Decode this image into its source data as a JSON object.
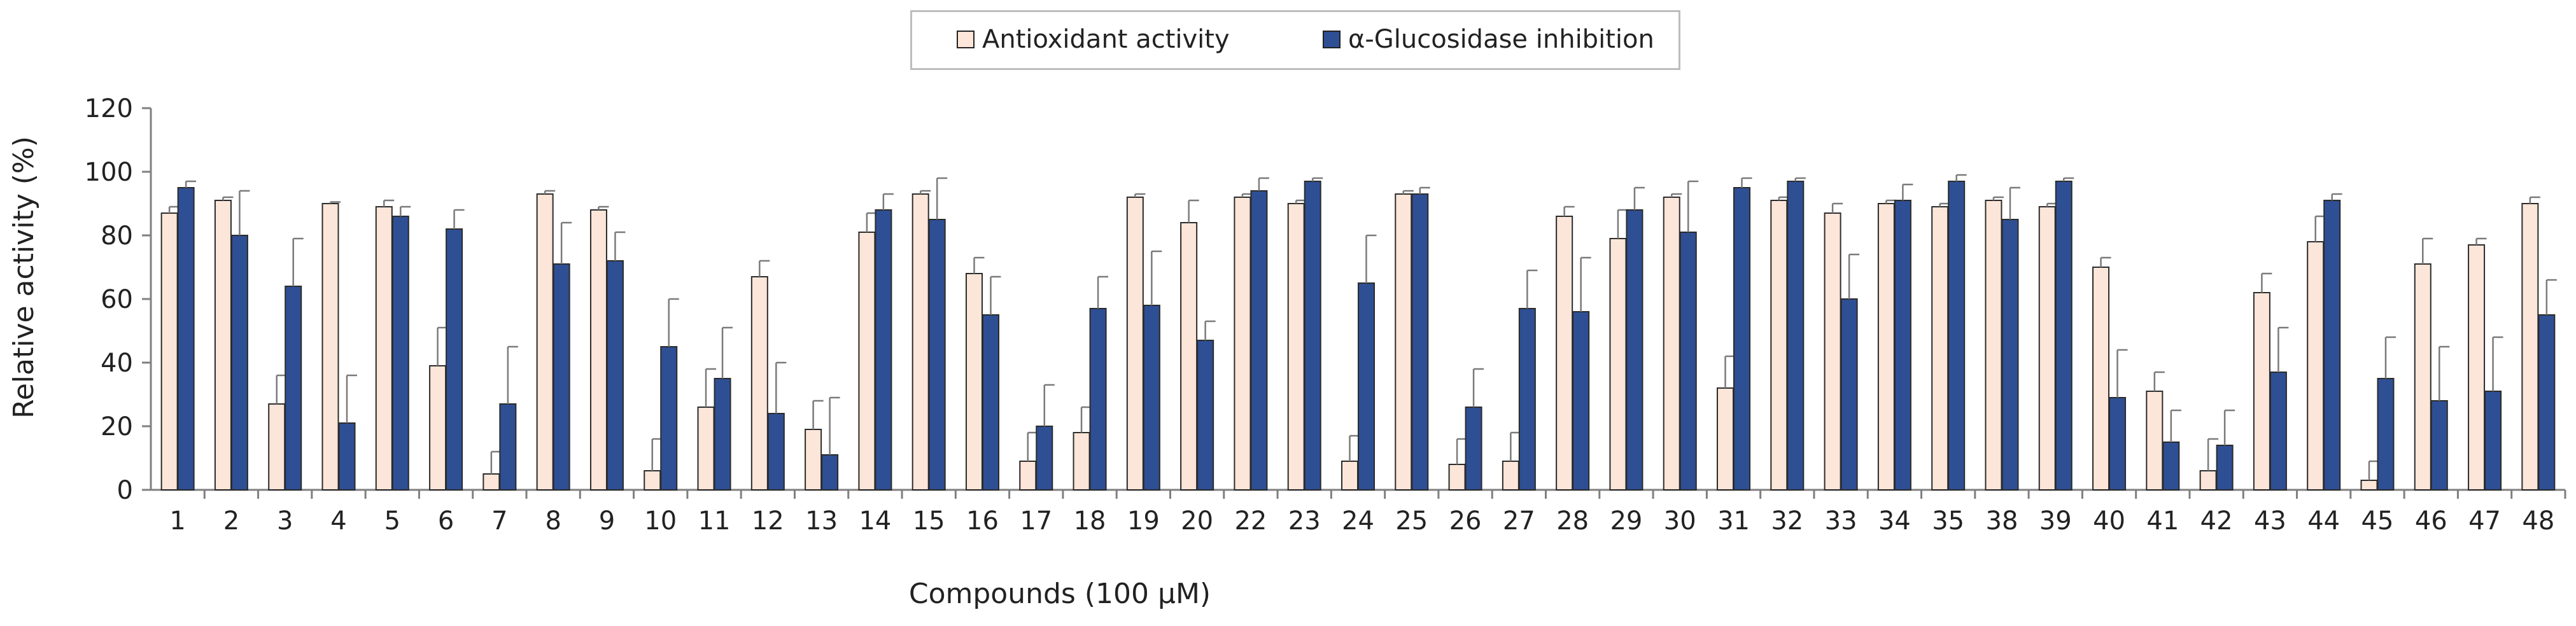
{
  "chart_data": {
    "type": "bar",
    "title": "",
    "xlabel": "Compounds (100 μM)",
    "ylabel": "Relative activity (%)",
    "ylim": [
      0,
      120
    ],
    "yticks": [
      0,
      20,
      40,
      60,
      80,
      100,
      120
    ],
    "legend_position": "top-center",
    "categories": [
      "1",
      "2",
      "3",
      "4",
      "5",
      "6",
      "7",
      "8",
      "9",
      "10",
      "11",
      "12",
      "13",
      "14",
      "15",
      "16",
      "17",
      "18",
      "19",
      "20",
      "22",
      "23",
      "24",
      "25",
      "26",
      "27",
      "28",
      "29",
      "30",
      "31",
      "32",
      "33",
      "34",
      "35",
      "38",
      "39",
      "40",
      "41",
      "42",
      "43",
      "44",
      "45",
      "46",
      "47",
      "48"
    ],
    "series": [
      {
        "name": "Antioxidant activity",
        "color": "#fce6d9",
        "values": [
          87,
          91,
          27,
          90,
          89,
          39,
          5,
          93,
          88,
          6,
          26,
          67,
          19,
          81,
          93,
          68,
          9,
          18,
          92,
          84,
          92,
          90,
          9,
          93,
          8,
          9,
          86,
          79,
          92,
          32,
          91,
          87,
          90,
          89,
          91,
          89,
          70,
          31,
          6,
          62,
          78,
          3,
          71,
          77,
          90
        ],
        "errors": [
          2,
          1,
          9,
          0.5,
          2,
          12,
          7,
          1,
          1,
          10,
          12,
          5,
          9,
          6,
          1,
          5,
          9,
          8,
          1,
          7,
          1,
          1,
          8,
          1,
          8,
          9,
          3,
          9,
          1,
          10,
          1,
          3,
          1,
          1,
          1,
          1,
          3,
          6,
          10,
          6,
          8,
          6,
          8,
          2,
          2
        ]
      },
      {
        "name": "α-Glucosidase inhibition",
        "color": "#2e4f94",
        "values": [
          95,
          80,
          64,
          21,
          86,
          82,
          27,
          71,
          72,
          45,
          35,
          24,
          11,
          88,
          85,
          55,
          20,
          57,
          58,
          47,
          94,
          97,
          65,
          93,
          26,
          57,
          56,
          88,
          81,
          95,
          97,
          60,
          91,
          97,
          85,
          97,
          29,
          15,
          14,
          37,
          91,
          35,
          28,
          31,
          55
        ],
        "errors": [
          2,
          14,
          15,
          15,
          3,
          6,
          18,
          13,
          9,
          15,
          16,
          16,
          18,
          5,
          13,
          12,
          13,
          10,
          17,
          6,
          4,
          1,
          15,
          2,
          12,
          12,
          17,
          7,
          16,
          3,
          1,
          14,
          5,
          2,
          10,
          1,
          15,
          10,
          11,
          14,
          2,
          13,
          17,
          17,
          11
        ]
      }
    ]
  }
}
